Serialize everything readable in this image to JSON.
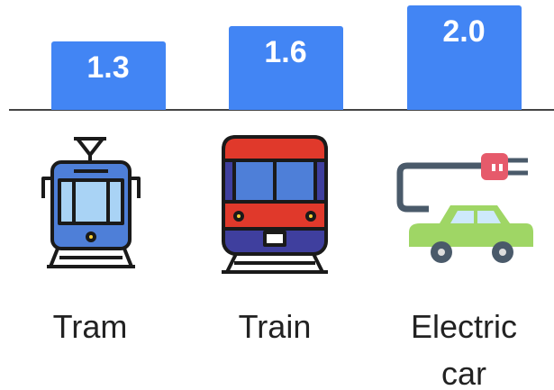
{
  "chart_data": {
    "type": "bar",
    "categories": [
      "Tram",
      "Train",
      "Electric car"
    ],
    "values": [
      1.3,
      1.6,
      2.0
    ],
    "value_labels": [
      "1.3",
      "1.6",
      "2.0"
    ],
    "color": "#4285f4",
    "ylim": [
      0,
      2.1
    ]
  }
}
